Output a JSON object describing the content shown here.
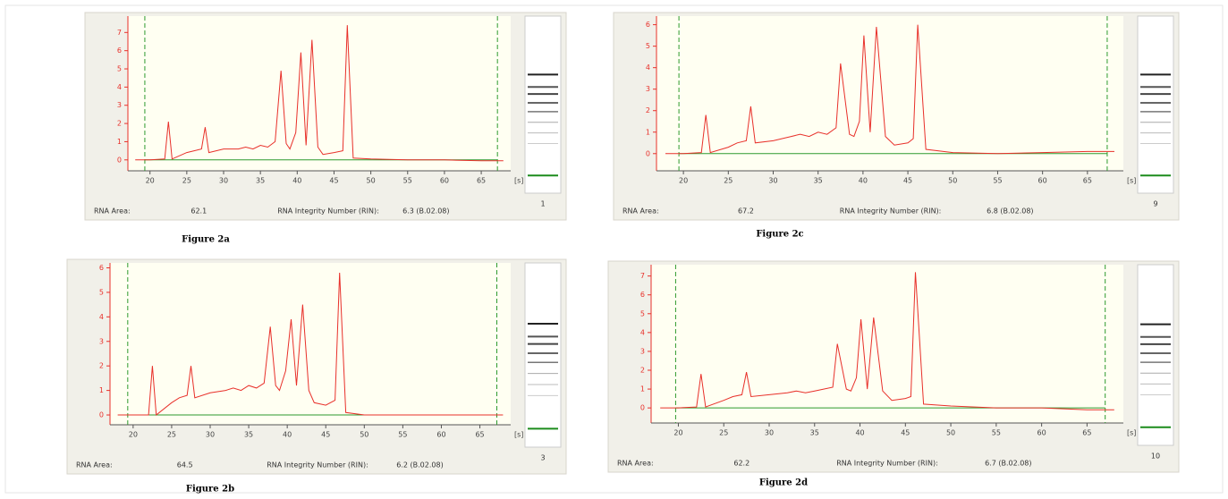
{
  "chart_data": [
    {
      "type": "line",
      "caption": "Figure 2a",
      "x_unit": "[s]",
      "lane": "1",
      "area_label": "RNA Area:",
      "area": "62.1",
      "rin_label": "RNA Integrity Number (RIN):",
      "rin": "6.3  (B.02.08)",
      "x": [
        18,
        20,
        22,
        22.5,
        23,
        25,
        26,
        27,
        27.5,
        28,
        30,
        32,
        33,
        34,
        35,
        36,
        37,
        37.8,
        38.5,
        39,
        39.8,
        40.5,
        41.2,
        42,
        42.8,
        43.5,
        45,
        46.2,
        46.8,
        47.6,
        50,
        55,
        60,
        65,
        68
      ],
      "series": [
        {
          "color": "#e8302a",
          "values": [
            0,
            0,
            0.05,
            2.1,
            0.05,
            0.4,
            0.5,
            0.6,
            1.8,
            0.4,
            0.6,
            0.6,
            0.7,
            0.6,
            0.8,
            0.7,
            1.0,
            4.9,
            0.9,
            0.6,
            1.5,
            5.9,
            0.8,
            6.6,
            0.7,
            0.3,
            0.4,
            0.5,
            7.4,
            0.1,
            0.05,
            0,
            0,
            -0.05,
            -0.05
          ]
        }
      ],
      "markers": [
        19.3,
        67.2
      ],
      "xlim": [
        17,
        69
      ],
      "xticks": [
        20,
        25,
        30,
        35,
        40,
        45,
        50,
        55,
        60,
        65
      ],
      "ylim": [
        -0.6,
        7.9
      ],
      "yticks": [
        0,
        1,
        2,
        3,
        4,
        5,
        6,
        7
      ]
    },
    {
      "type": "line",
      "caption": "Figure 2b",
      "x_unit": "[s]",
      "lane": "3",
      "area_label": "RNA Area:",
      "area": "64.5",
      "rin_label": "RNA Integrity Number (RIN):",
      "rin": "6.2  (B.02.08)",
      "x": [
        18,
        20,
        22,
        22.5,
        23,
        25,
        26,
        27,
        27.5,
        28,
        30,
        32,
        33,
        34,
        35,
        36,
        37,
        37.8,
        38.5,
        39,
        39.8,
        40.5,
        41.2,
        42,
        42.8,
        43.5,
        45,
        46.2,
        46.8,
        47.6,
        50,
        55,
        60,
        65,
        68
      ],
      "series": [
        {
          "color": "#e8302a",
          "values": [
            0,
            0,
            0,
            2.0,
            0,
            0.5,
            0.7,
            0.8,
            2.0,
            0.7,
            0.9,
            1.0,
            1.1,
            1.0,
            1.2,
            1.1,
            1.3,
            3.6,
            1.2,
            1.0,
            1.8,
            3.9,
            1.2,
            4.5,
            1.0,
            0.5,
            0.4,
            0.6,
            5.8,
            0.1,
            0,
            0,
            0,
            0,
            0
          ]
        }
      ],
      "markers": [
        19.3,
        67.2
      ],
      "xlim": [
        17,
        69
      ],
      "xticks": [
        20,
        25,
        30,
        35,
        40,
        45,
        50,
        55,
        60,
        65
      ],
      "ylim": [
        -0.4,
        6.2
      ],
      "yticks": [
        0,
        1,
        2,
        3,
        4,
        5,
        6
      ]
    },
    {
      "type": "line",
      "caption": "Figure 2c",
      "x_unit": "[s]",
      "lane": "9",
      "area_label": "RNA Area:",
      "area": "67.2",
      "rin_label": "RNA Integrity Number (RIN):",
      "rin": "6.8  (B.02.08)",
      "x": [
        18,
        20,
        22,
        22.5,
        23,
        25,
        26,
        27,
        27.5,
        28,
        30,
        32,
        33,
        34,
        35,
        36,
        37,
        37.5,
        38.5,
        39,
        39.6,
        40.1,
        40.8,
        41.5,
        42.5,
        43.5,
        45,
        45.6,
        46.1,
        47,
        50,
        55,
        60,
        65,
        68
      ],
      "series": [
        {
          "color": "#e8302a",
          "values": [
            0,
            0,
            0.05,
            1.8,
            0.05,
            0.3,
            0.5,
            0.6,
            2.2,
            0.5,
            0.6,
            0.8,
            0.9,
            0.8,
            1.0,
            0.9,
            1.2,
            4.2,
            0.9,
            0.8,
            1.5,
            5.5,
            1.0,
            5.9,
            0.8,
            0.4,
            0.5,
            0.7,
            6.0,
            0.2,
            0.05,
            0,
            0.05,
            0.1,
            0.1
          ]
        }
      ],
      "markers": [
        19.5,
        67.2
      ],
      "xlim": [
        17,
        69
      ],
      "xticks": [
        20,
        25,
        30,
        35,
        40,
        45,
        50,
        55,
        60,
        65
      ],
      "ylim": [
        -0.8,
        6.4
      ],
      "yticks": [
        0,
        1,
        2,
        3,
        4,
        5,
        6
      ]
    },
    {
      "type": "line",
      "caption": "Figure 2d",
      "x_unit": "[s]",
      "lane": "10",
      "area_label": "RNA Area:",
      "area": "62.2",
      "rin_label": "RNA Integrity Number (RIN):",
      "rin": "6.7  (B.02.08)",
      "x": [
        18,
        20,
        22,
        22.5,
        23,
        25,
        26,
        27,
        27.5,
        28,
        30,
        32,
        33,
        34,
        35,
        36,
        37,
        37.5,
        38.5,
        39,
        39.6,
        40.1,
        40.8,
        41.5,
        42.5,
        43.5,
        45,
        45.6,
        46.1,
        47,
        50,
        55,
        60,
        65,
        68
      ],
      "series": [
        {
          "color": "#e8302a",
          "values": [
            0,
            0,
            0.05,
            1.8,
            0.05,
            0.4,
            0.6,
            0.7,
            1.9,
            0.6,
            0.7,
            0.8,
            0.9,
            0.8,
            0.9,
            1.0,
            1.1,
            3.4,
            1.0,
            0.9,
            1.6,
            4.7,
            1.0,
            4.8,
            0.9,
            0.4,
            0.5,
            0.6,
            7.2,
            0.2,
            0.1,
            0,
            0,
            -0.1,
            -0.1
          ]
        }
      ],
      "markers": [
        19.7,
        67.0
      ],
      "xlim": [
        17,
        69
      ],
      "xticks": [
        20,
        25,
        30,
        35,
        40,
        45,
        50,
        55,
        60,
        65
      ],
      "ylim": [
        -0.8,
        7.6
      ],
      "yticks": [
        0,
        1,
        2,
        3,
        4,
        5,
        6,
        7
      ]
    }
  ]
}
